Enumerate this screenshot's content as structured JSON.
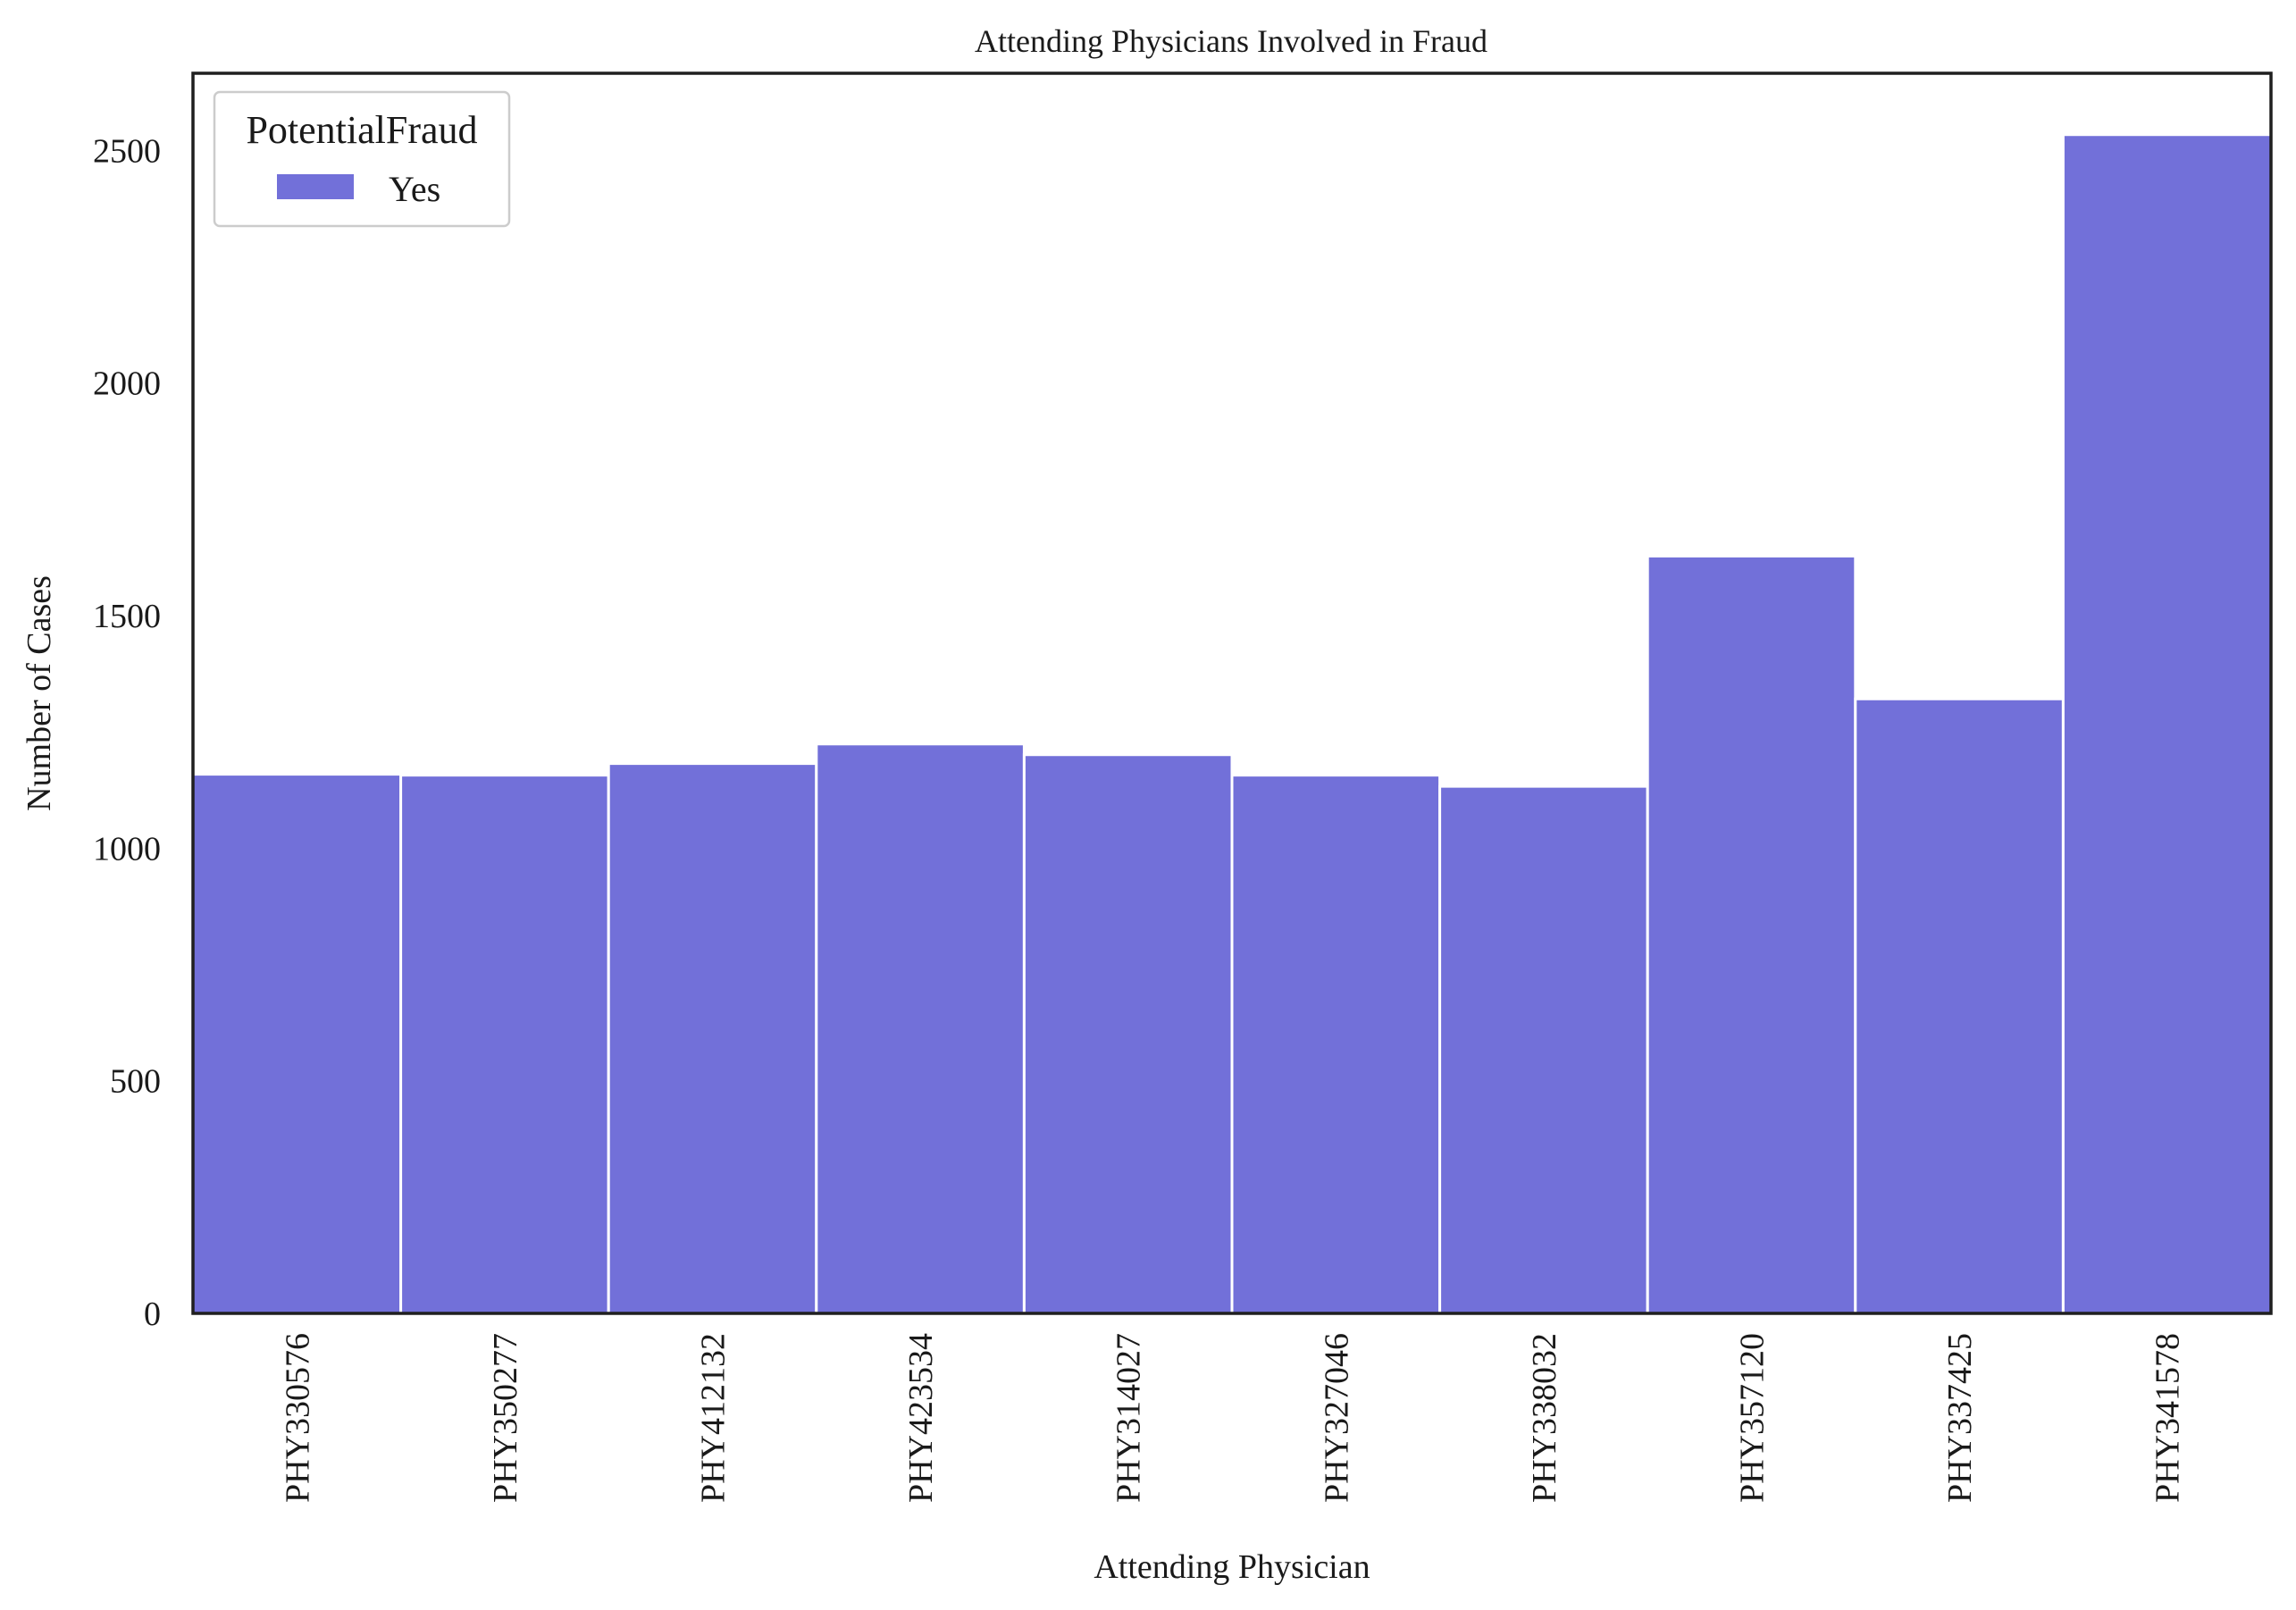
{
  "colors": {
    "bar": "#7270d9",
    "bar_edge": "#ffffff",
    "axes": "#1f1f1f",
    "legend_border": "#cccccc"
  },
  "chart_data": {
    "type": "bar",
    "title": "Attending Physicians Involved in Fraud",
    "xlabel": "Attending Physician",
    "ylabel": "Number of Cases",
    "categories": [
      "PHY330576",
      "PHY350277",
      "PHY412132",
      "PHY423534",
      "PHY314027",
      "PHY327046",
      "PHY338032",
      "PHY357120",
      "PHY337425",
      "PHY341578"
    ],
    "series": [
      {
        "name": "Yes",
        "values": [
          1159,
          1157,
          1182,
          1224,
          1201,
          1157,
          1133,
          1628,
          1321,
          2534
        ]
      }
    ],
    "ylim": [
      0,
      2666
    ],
    "yticks": [
      0,
      500,
      1000,
      1500,
      2000,
      2500
    ],
    "grid": false,
    "legend": {
      "title": "PotentialFraud",
      "placement": "upper-left"
    }
  }
}
